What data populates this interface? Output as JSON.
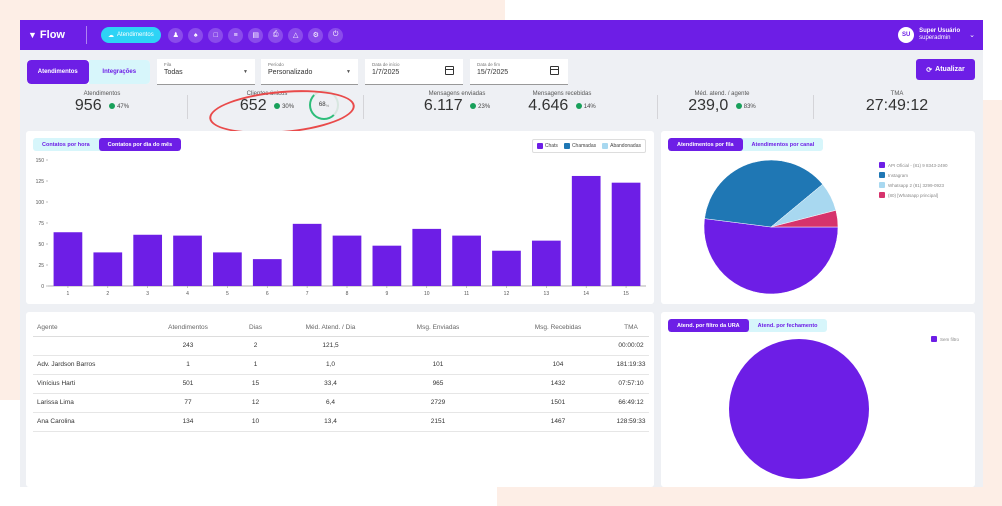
{
  "nav": {
    "logo": "Flow",
    "pill_label": "Atendimentos",
    "icons": [
      "users-icon",
      "user-plus-icon",
      "chat-icon",
      "list-icon",
      "calendar-icon",
      "printer-icon",
      "bell-icon",
      "settings-icon",
      "power-icon"
    ],
    "user": {
      "initials": "SU",
      "name": "Super Usuário",
      "role": "superadmin"
    }
  },
  "filters": {
    "tabs": [
      "Atendimentos",
      "Integrações"
    ],
    "fila": {
      "label": "Fila",
      "value": "Todas"
    },
    "periodo": {
      "label": "Período",
      "value": "Personalizado"
    },
    "data_inicio": {
      "label": "Data de início",
      "value": "1/7/2025"
    },
    "data_fim": {
      "label": "Data de fim",
      "value": "15/7/2025"
    },
    "update_button": "Atualizar"
  },
  "stats": [
    {
      "label": "Atendimentos",
      "value": "956",
      "pct": "47%"
    },
    {
      "label": "Clientes únicos",
      "value": "652",
      "pct": "30%",
      "gauge": "68",
      "gauge_unit": "%"
    },
    {
      "label": "Mensagens enviadas",
      "value": "6.117",
      "pct": "23%"
    },
    {
      "label": "Mensagens recebidas",
      "value": "4.646",
      "pct": "14%"
    },
    {
      "label": "Méd. atend. / agente",
      "value": "239,0",
      "pct": "83%"
    },
    {
      "label": "TMA",
      "value": "27:49:12",
      "pct": ""
    }
  ],
  "bar_panel": {
    "tabs": [
      "Contatos por hora",
      "Contatos por dia do mês"
    ],
    "legend": [
      {
        "label": "Chats",
        "color": "#6d1ee6"
      },
      {
        "label": "Chamadas",
        "color": "#1f77b4"
      },
      {
        "label": "Abandonadas",
        "color": "#a8d8f0"
      }
    ]
  },
  "chart_data": [
    {
      "type": "bar",
      "categories": [
        "1",
        "2",
        "3",
        "4",
        "5",
        "6",
        "7",
        "8",
        "9",
        "10",
        "11",
        "12",
        "13",
        "14",
        "15"
      ],
      "series": [
        {
          "name": "Chats",
          "values": [
            64,
            40,
            61,
            60,
            40,
            32,
            74,
            60,
            48,
            68,
            60,
            42,
            54,
            131,
            123
          ]
        }
      ],
      "yticks": [
        0,
        25,
        50,
        75,
        100,
        125,
        150
      ],
      "ylim": [
        0,
        150
      ],
      "color": "#6d1ee6"
    },
    {
      "type": "pie",
      "tabs": [
        "Atendimentos por fila",
        "Atendimentos por canal"
      ],
      "labels": [
        "API Oficial - (81) 9 8343-2490",
        "Instagram",
        "Whatsapp 2 (81) 3299-0923",
        "(80) [Whatsapp principal]"
      ],
      "values": [
        0.52,
        0.37,
        0.07,
        0.04
      ],
      "colors": [
        "#6d1ee6",
        "#1f77b4",
        "#a8d8f0",
        "#d6336c"
      ]
    },
    {
      "type": "pie",
      "tabs": [
        "Atend. por filtro da URA",
        "Atend. por fechamento"
      ],
      "labels": [
        "Sem filtro"
      ],
      "values": [
        1.0
      ],
      "colors": [
        "#6d1ee6"
      ]
    }
  ],
  "table": {
    "headers": [
      "Agente",
      "Atendimentos",
      "Dias",
      "Méd. Atend. / Dia",
      "Msg. Enviadas",
      "Msg. Recebidas",
      "TMA"
    ],
    "rows": [
      [
        "",
        "243",
        "2",
        "121,5",
        "",
        "",
        "00:00:02"
      ],
      [
        "Adv. Jardson Barros",
        "1",
        "1",
        "1,0",
        "101",
        "104",
        "181:19:33"
      ],
      [
        "Vinícius Harti",
        "501",
        "15",
        "33,4",
        "965",
        "1432",
        "07:57:10"
      ],
      [
        "Larissa Lima",
        "77",
        "12",
        "6,4",
        "2729",
        "1501",
        "66:49:12"
      ],
      [
        "Ana Carolina",
        "134",
        "10",
        "13,4",
        "2151",
        "1467",
        "128:59:33"
      ]
    ]
  }
}
